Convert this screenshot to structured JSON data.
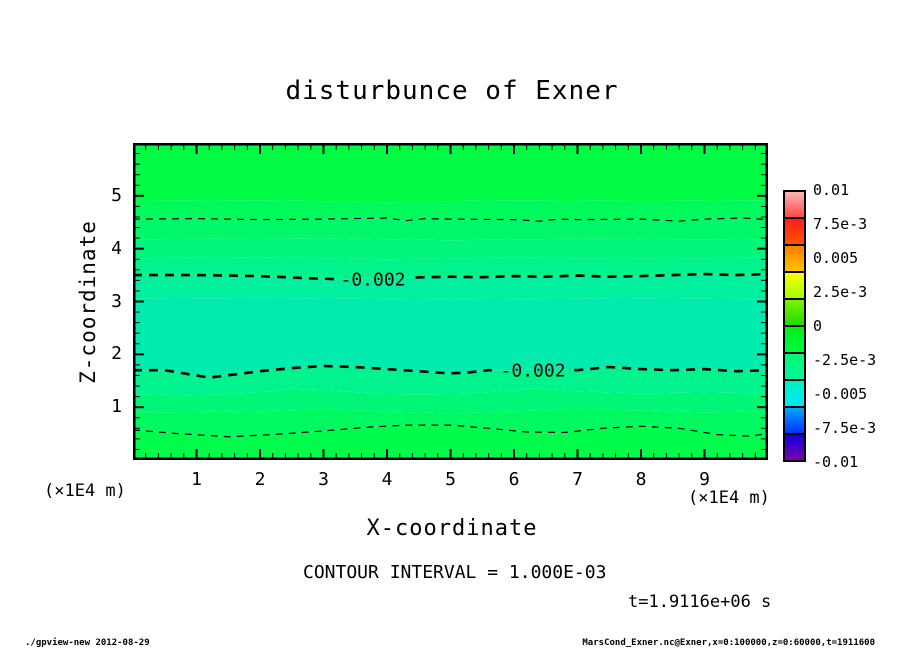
{
  "title": "disturbunce of Exner",
  "axes": {
    "x_title": "X-coordinate",
    "y_title": "Z-coordinate",
    "x_unit": "(×1E4 m)",
    "y_unit": "(×1E4 m)",
    "x_tick_labels": [
      "1",
      "2",
      "3",
      "4",
      "5",
      "6",
      "7",
      "8",
      "9"
    ],
    "z_tick_labels": [
      "1",
      "2",
      "3",
      "4",
      "5"
    ]
  },
  "annotations": {
    "contour_interval": "CONTOUR INTERVAL = 1.000E-03",
    "time": "t=1.9116e+06 s"
  },
  "footer": {
    "left": "./gpview-new  2012-08-29",
    "right": "MarsCond_Exner.nc@Exner,x=0:100000,z=0:60000,t=1911600"
  },
  "chart_data": {
    "type": "heatmap",
    "subtype": "filled-contour",
    "title": "disturbunce of Exner",
    "xlabel": "X-coordinate",
    "ylabel": "Z-coordinate",
    "x_unit_scale": "(×1E4 m)",
    "z_unit_scale": "(×1E4 m)",
    "x_range": [
      0,
      10
    ],
    "z_range": [
      0,
      6
    ],
    "x_ticks": [
      1,
      2,
      3,
      4,
      5,
      6,
      7,
      8,
      9
    ],
    "z_ticks": [
      1,
      2,
      3,
      4,
      5
    ],
    "minor_tick_step": 0.2,
    "contour_interval": 0.001,
    "grid": false,
    "legend_position": "right-colorbar",
    "boundaries": {
      "b0": [
        [
          0,
          6
        ],
        [
          10,
          6
        ]
      ],
      "b1": [
        [
          0,
          4.9
        ],
        [
          2,
          4.92
        ],
        [
          4,
          4.88
        ],
        [
          6,
          4.92
        ],
        [
          8,
          4.9
        ],
        [
          10,
          4.92
        ]
      ],
      "b2": [
        [
          0,
          4.56
        ],
        [
          1,
          4.57
        ],
        [
          2,
          4.55
        ],
        [
          3,
          4.56
        ],
        [
          4,
          4.58
        ],
        [
          4.3,
          4.53
        ],
        [
          4.6,
          4.57
        ],
        [
          5,
          4.56
        ],
        [
          6,
          4.55
        ],
        [
          6.4,
          4.52
        ],
        [
          6.7,
          4.56
        ],
        [
          7,
          4.55
        ],
        [
          8,
          4.56
        ],
        [
          8.6,
          4.52
        ],
        [
          9,
          4.56
        ],
        [
          9.6,
          4.58
        ],
        [
          10,
          4.55
        ]
      ],
      "b3": [
        [
          0,
          4.18
        ],
        [
          3,
          4.2
        ],
        [
          5,
          4.16
        ],
        [
          7,
          4.19
        ],
        [
          10,
          4.17
        ]
      ],
      "b4": [
        [
          0,
          3.82
        ],
        [
          2,
          3.84
        ],
        [
          4,
          3.8
        ],
        [
          6,
          3.83
        ],
        [
          8,
          3.81
        ],
        [
          10,
          3.83
        ]
      ],
      "b5": [
        [
          0,
          3.5
        ],
        [
          1,
          3.5
        ],
        [
          2,
          3.48
        ],
        [
          2.8,
          3.44
        ],
        [
          3.3,
          3.42
        ],
        [
          4,
          3.44
        ],
        [
          4.6,
          3.46
        ],
        [
          5,
          3.47
        ],
        [
          5.5,
          3.46
        ],
        [
          6,
          3.48
        ],
        [
          6.5,
          3.47
        ],
        [
          7,
          3.49
        ],
        [
          7.5,
          3.47
        ],
        [
          8,
          3.48
        ],
        [
          8.5,
          3.5
        ],
        [
          9,
          3.52
        ],
        [
          9.5,
          3.5
        ],
        [
          10,
          3.52
        ]
      ],
      "b6": [
        [
          0,
          3.05
        ],
        [
          2,
          3.07
        ],
        [
          5,
          3.03
        ],
        [
          8,
          3.06
        ],
        [
          10,
          3.04
        ]
      ],
      "b7": [
        [
          0,
          1.7
        ],
        [
          0.5,
          1.7
        ],
        [
          0.9,
          1.62
        ],
        [
          1.2,
          1.56
        ],
        [
          1.6,
          1.62
        ],
        [
          2,
          1.68
        ],
        [
          2.5,
          1.74
        ],
        [
          3,
          1.78
        ],
        [
          3.5,
          1.76
        ],
        [
          4,
          1.72
        ],
        [
          4.5,
          1.68
        ],
        [
          5,
          1.64
        ],
        [
          5.3,
          1.66
        ],
        [
          5.6,
          1.7
        ],
        [
          6,
          1.7
        ],
        [
          6.5,
          1.72
        ],
        [
          7,
          1.7
        ],
        [
          7.5,
          1.76
        ],
        [
          8,
          1.72
        ],
        [
          8.5,
          1.7
        ],
        [
          9,
          1.72
        ],
        [
          9.5,
          1.68
        ],
        [
          10,
          1.7
        ]
      ],
      "b8": [
        [
          0,
          1.25
        ],
        [
          1,
          1.22
        ],
        [
          2,
          1.28
        ],
        [
          2.5,
          1.35
        ],
        [
          3,
          1.32
        ],
        [
          4,
          1.25
        ],
        [
          5,
          1.24
        ],
        [
          5.8,
          1.3
        ],
        [
          6.3,
          1.36
        ],
        [
          7,
          1.3
        ],
        [
          8,
          1.26
        ],
        [
          9,
          1.28
        ],
        [
          10,
          1.26
        ]
      ],
      "b8a": [
        [
          0,
          0.9
        ],
        [
          2,
          0.92
        ],
        [
          3,
          0.96
        ],
        [
          4,
          0.92
        ],
        [
          5,
          0.88
        ],
        [
          6,
          0.92
        ],
        [
          7,
          0.96
        ],
        [
          8,
          0.94
        ],
        [
          9,
          0.9
        ],
        [
          10,
          0.92
        ]
      ],
      "b9": [
        [
          0,
          0.57
        ],
        [
          0.7,
          0.5
        ],
        [
          1.5,
          0.44
        ],
        [
          2.2,
          0.48
        ],
        [
          3,
          0.55
        ],
        [
          3.7,
          0.62
        ],
        [
          4.3,
          0.66
        ],
        [
          5,
          0.66
        ],
        [
          5.6,
          0.6
        ],
        [
          6.2,
          0.53
        ],
        [
          6.8,
          0.52
        ],
        [
          7.4,
          0.6
        ],
        [
          8,
          0.64
        ],
        [
          8.6,
          0.6
        ],
        [
          9.2,
          0.48
        ],
        [
          9.7,
          0.45
        ],
        [
          10,
          0.5
        ]
      ],
      "b10": [
        [
          0,
          0
        ],
        [
          10,
          0
        ]
      ]
    },
    "bands": [
      {
        "top": "b0",
        "bottom": "b1",
        "color": "#00FB45",
        "value_range": [
          -0.0005,
          -0.001
        ]
      },
      {
        "top": "b1",
        "bottom": "b2",
        "color": "#00F95B",
        "value_range": [
          -0.001,
          -0.001
        ]
      },
      {
        "top": "b2",
        "bottom": "b3",
        "color": "#00F868",
        "value_range": [
          -0.001,
          -0.0015
        ]
      },
      {
        "top": "b3",
        "bottom": "b4",
        "color": "#00F67B",
        "value_range": [
          -0.0015,
          -0.002
        ]
      },
      {
        "top": "b4",
        "bottom": "b5",
        "color": "#00F48B",
        "value_range": [
          -0.002,
          -0.002
        ]
      },
      {
        "top": "b5",
        "bottom": "b6",
        "color": "#00F09D",
        "value_range": [
          -0.002,
          -0.0025
        ]
      },
      {
        "top": "b6",
        "bottom": "b7",
        "color": "#00ECAE",
        "value_range": [
          -0.0025,
          -0.0025
        ]
      },
      {
        "top": "b7",
        "bottom": "b8",
        "color": "#00F38D",
        "value_range": [
          -0.002,
          -0.002
        ]
      },
      {
        "top": "b8",
        "bottom": "b8a",
        "color": "#00F677",
        "value_range": [
          -0.0015,
          -0.0015
        ]
      },
      {
        "top": "b8a",
        "bottom": "b9",
        "color": "#00F961",
        "value_range": [
          -0.001,
          -0.001
        ]
      },
      {
        "top": "b9",
        "bottom": "b10",
        "color": "#00FC4B",
        "value_range": [
          -0.001,
          -0.0005
        ]
      }
    ],
    "contours": [
      {
        "boundary": "b2",
        "value": -0.001,
        "width": 1.2,
        "dash": "7 6",
        "label": null
      },
      {
        "boundary": "b5",
        "value": -0.002,
        "width": 2.6,
        "dash": "9 7",
        "label": "-0.002",
        "label_x": 3.78,
        "gap": [
          3.2,
          4.45
        ]
      },
      {
        "boundary": "b7",
        "value": -0.002,
        "width": 2.6,
        "dash": "9 7",
        "label": "-0.002",
        "label_x": 6.3,
        "gap": [
          5.65,
          6.95
        ]
      },
      {
        "boundary": "b9",
        "value": -0.001,
        "width": 1.2,
        "dash": "7 6",
        "label": null
      }
    ],
    "colorbar": {
      "range": [
        -0.01,
        0.01
      ],
      "labels": [
        "0.01",
        "7.5e-3",
        "0.005",
        "2.5e-3",
        "0",
        "-2.5e-3",
        "-0.005",
        "-7.5e-3",
        "-0.01"
      ],
      "segments": [
        [
          "#FFB2B2",
          "#FF4A4A"
        ],
        [
          "#FF1C1C",
          "#FF5400"
        ],
        [
          "#FF7D00",
          "#FFC400"
        ],
        [
          "#FBFF00",
          "#9FFF00"
        ],
        [
          "#7BF500",
          "#1FDC00"
        ],
        [
          "#00EE14",
          "#00F942"
        ],
        [
          "#00FC6E",
          "#00F49E"
        ],
        [
          "#00EFC0",
          "#00EBF2"
        ],
        [
          "#00A8FF",
          "#0430FF"
        ],
        [
          "#1000DF",
          "#7C00A8"
        ]
      ]
    }
  }
}
